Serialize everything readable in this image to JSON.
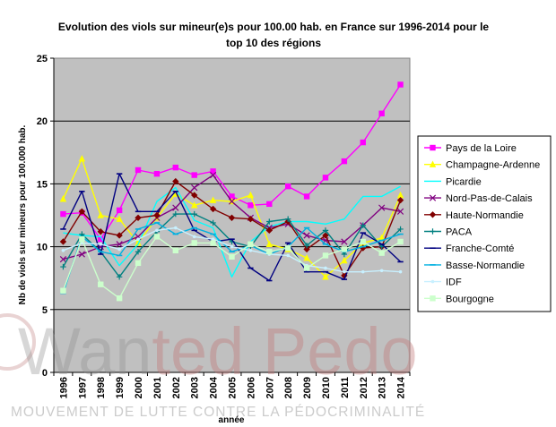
{
  "chart_data": {
    "type": "line",
    "title_lines": [
      "Evolution des viols sur mineur(e)s pour 100.00 hab. en France sur 1996-2014 pour le",
      "top 10 des régions"
    ],
    "xlabel": "année",
    "ylabel": "Nb de viols sur mineurs pour 100.000 hab.",
    "ylim": [
      0,
      25
    ],
    "yticks": [
      0,
      5,
      10,
      15,
      20,
      25
    ],
    "grid": true,
    "legend_position": "right",
    "categories": [
      "1996",
      "1997",
      "1998",
      "1999",
      "2000",
      "2001",
      "2002",
      "2003",
      "2004",
      "2005",
      "2006",
      "2007",
      "2008",
      "2009",
      "2010",
      "2011",
      "2012",
      "2013",
      "2014"
    ],
    "series": [
      {
        "name": "Pays de la Loire",
        "color": "#ff00ff",
        "marker": "square",
        "values": [
          12.6,
          12.7,
          10.6,
          12.9,
          16.1,
          15.8,
          16.3,
          15.7,
          16.0,
          14.0,
          13.3,
          13.4,
          14.8,
          14.0,
          15.5,
          16.8,
          18.3,
          20.6,
          22.9
        ]
      },
      {
        "name": "Champagne-Ardenne",
        "color": "#ffff00",
        "marker": "triangle",
        "values": [
          13.8,
          17.0,
          12.5,
          12.2,
          10.3,
          12.3,
          14.2,
          13.3,
          13.7,
          13.6,
          14.1,
          10.2,
          9.8,
          9.1,
          7.6,
          8.9,
          10.3,
          10.7,
          14.1
        ]
      },
      {
        "name": "Picardie",
        "color": "#00ffff",
        "marker": "none",
        "values": [
          11.1,
          10.9,
          10.8,
          8.5,
          10.2,
          13.6,
          14.7,
          12.1,
          11.5,
          7.6,
          10.4,
          11.6,
          12.0,
          12.0,
          11.8,
          12.2,
          14.0,
          14.0,
          14.8
        ]
      },
      {
        "name": "Nord-Pas-de-Calais",
        "color": "#800080",
        "marker": "x",
        "values": [
          9.0,
          9.4,
          10.0,
          10.2,
          10.8,
          12.3,
          13.1,
          14.7,
          15.7,
          13.6,
          12.3,
          11.5,
          11.8,
          10.9,
          10.5,
          10.4,
          11.7,
          13.1,
          12.8
        ]
      },
      {
        "name": "Haute-Normandie",
        "color": "#800000",
        "marker": "diamond",
        "values": [
          10.4,
          12.8,
          11.2,
          10.9,
          12.3,
          12.5,
          15.2,
          14.1,
          13.0,
          12.3,
          12.2,
          11.3,
          12.0,
          9.8,
          10.9,
          7.7,
          9.9,
          10.0,
          13.7
        ]
      },
      {
        "name": "PACA",
        "color": "#008080",
        "marker": "plus",
        "values": [
          8.4,
          11.0,
          9.6,
          7.6,
          9.6,
          11.2,
          12.6,
          12.6,
          11.9,
          10.4,
          10.0,
          12.0,
          12.2,
          10.1,
          11.3,
          9.4,
          11.7,
          10.0,
          11.4
        ]
      },
      {
        "name": "Franche-Comté",
        "color": "#000080",
        "marker": "dash",
        "values": [
          11.4,
          14.4,
          9.4,
          15.8,
          12.8,
          12.8,
          14.4,
          11.3,
          10.4,
          10.6,
          8.3,
          7.3,
          10.3,
          8.0,
          8.0,
          7.4,
          11.1,
          10.2,
          8.8
        ]
      },
      {
        "name": "Basse-Normandie",
        "color": "#00b0e0",
        "marker": "dash",
        "values": [
          6.3,
          10.8,
          9.6,
          9.3,
          11.4,
          11.9,
          11.0,
          11.5,
          11.0,
          9.6,
          10.1,
          9.4,
          10.0,
          11.5,
          10.2,
          9.6,
          10.0,
          10.5,
          11.0
        ]
      },
      {
        "name": "IDF",
        "color": "#c8f0ff",
        "marker": "dot",
        "values": [
          9.7,
          10.3,
          10.2,
          9.8,
          10.6,
          11.3,
          11.5,
          10.8,
          10.6,
          10.0,
          9.7,
          9.4,
          9.3,
          8.5,
          8.3,
          8.0,
          8.0,
          8.1,
          8.0
        ]
      },
      {
        "name": "Bourgogne",
        "color": "#ccffcc",
        "marker": "square",
        "values": [
          6.5,
          10.6,
          7.0,
          5.9,
          8.7,
          10.8,
          9.7,
          10.3,
          10.3,
          9.2,
          10.2,
          9.6,
          9.9,
          8.3,
          9.3,
          9.8,
          10.4,
          9.5,
          10.4
        ]
      }
    ]
  },
  "watermark": {
    "brand_a": "Wan",
    "brand_b": "ted Pedo",
    "tagline": "MOUVEMENT DE LUTTE CONTRE LA PÉDOCRIMINALITÉ"
  }
}
